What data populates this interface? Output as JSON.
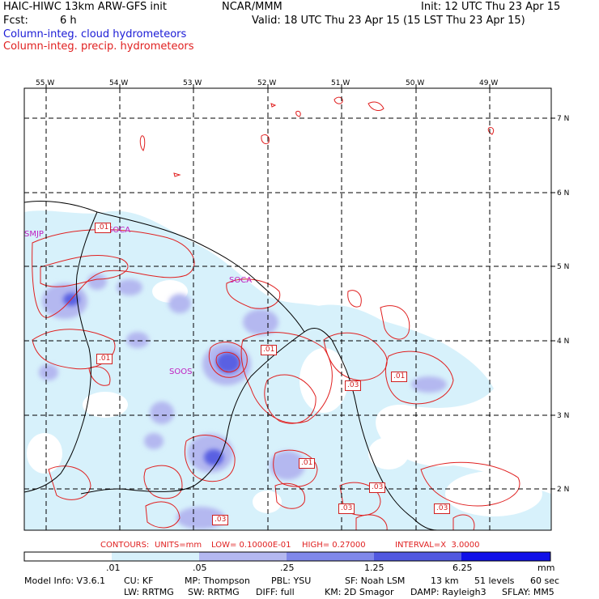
{
  "header": {
    "model": "HAIC-HIWC 13km ARW-GFS init",
    "org": "NCAR/MMM",
    "init": "Init: 12 UTC Thu 23 Apr 15",
    "fcst_label": "Fcst:",
    "fcst_value": "6 h",
    "valid": "Valid: 18 UTC Thu 23 Apr 15 (15 LST Thu 23 Apr 15)",
    "field1": "Column-integ. cloud hydrometeors",
    "field2": "Column-integ. precip. hydrometeors"
  },
  "colors": {
    "cloud_field_text": "#1a1ad6",
    "precip_field_text": "#e02020",
    "shade1": "#d7f1fb",
    "shade2": "#b4b8f0",
    "shade3": "#8088ea",
    "shade4": "#5158e0",
    "shade5": "#2a2ad8",
    "shade6": "#1010e8",
    "contour": "#e02020",
    "coast": "#000000",
    "station": "#c020c0"
  },
  "map": {
    "lon_labels": [
      "55 W",
      "54 W",
      "53 W",
      "52 W",
      "51 W",
      "50 W",
      "49 W"
    ],
    "lat_labels": [
      "7 N",
      "6 N",
      "5 N",
      "4 N",
      "3 N",
      "2 N"
    ],
    "stations": [
      "SMJP",
      "SOCA",
      "SOOS",
      "SOCA"
    ],
    "contour_labels": [
      ".01",
      ".01",
      ".01",
      ".03",
      ".01",
      ".01",
      ".03",
      ".03",
      ".03",
      ".03"
    ]
  },
  "contours_line": {
    "contours": "CONTOURS:",
    "units": "UNITS=mm",
    "low": "LOW= 0.10000E-01",
    "high": "HIGH= 0.27000",
    "interval": "INTERVAL=X  3.0000"
  },
  "colorbar": {
    "ticks": [
      ".01",
      ".05",
      ".25",
      "1.25",
      "6.25"
    ],
    "units": "mm"
  },
  "footer": {
    "line1": [
      "Model Info: V3.6.1",
      "CU: KF",
      "MP: Thompson",
      "PBL: YSU",
      "SF: Noah LSM",
      "13 km",
      "51 levels",
      "60 sec"
    ],
    "line2": [
      "LW: RRTMG",
      "SW: RRTMG",
      "DIFF: full",
      "KM: 2D Smagor",
      "DAMP: Rayleigh3",
      "SFLAY: MM5"
    ]
  }
}
